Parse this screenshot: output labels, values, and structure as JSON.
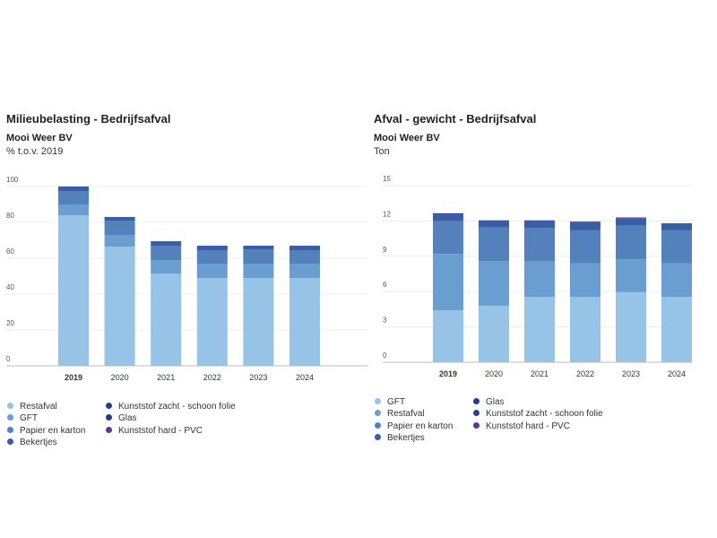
{
  "chart_data": [
    {
      "type": "bar",
      "stacked": true,
      "title": "Milieubelasting - Bedrijfsafval",
      "subtitle": "Mooi Weer BV",
      "unit": "% t.o.v. 2019",
      "xlabel": "",
      "ylabel": "",
      "categories": [
        "2019",
        "2020",
        "2021",
        "2022",
        "2023",
        "2024"
      ],
      "highlight_category": "2019",
      "ylim": [
        0,
        100
      ],
      "yticks": [
        0,
        20,
        40,
        60,
        80,
        100
      ],
      "grid": true,
      "legend_position": "bottom-left",
      "series": [
        {
          "name": "Restafval",
          "color": "#96c3e6",
          "values": [
            84,
            66.5,
            51.5,
            49,
            49,
            49
          ]
        },
        {
          "name": "GFT",
          "color": "#6b9ed0",
          "values": [
            6,
            6.5,
            7.5,
            8,
            8,
            8
          ]
        },
        {
          "name": "Papier en karton",
          "color": "#5480bb",
          "values": [
            7.5,
            8,
            8,
            7.5,
            8,
            7.5
          ]
        },
        {
          "name": "Bekertjes",
          "color": "#3a5ea6",
          "values": [
            2.5,
            2,
            2.5,
            2.5,
            2,
            2.5
          ]
        },
        {
          "name": "Kunststof zacht - schoon folie",
          "color": "#2c3f8c",
          "values": [
            0,
            0,
            0,
            0,
            0,
            0
          ]
        },
        {
          "name": "Glas",
          "color": "#2a3a86",
          "values": [
            0,
            0,
            0,
            0,
            0,
            0
          ]
        },
        {
          "name": "Kunststof hard - PVC",
          "color": "#5a3a8e",
          "values": [
            0,
            0,
            0,
            0,
            0,
            0
          ]
        }
      ],
      "legend_columns": [
        [
          "Restafval",
          "GFT",
          "Papier en karton",
          "Bekertjes"
        ],
        [
          "Kunststof zacht - schoon folie",
          "Glas",
          "Kunststof hard - PVC"
        ]
      ]
    },
    {
      "type": "bar",
      "stacked": true,
      "title": "Afval - gewicht - Bedrijfsafval",
      "subtitle": "Mooi Weer BV",
      "unit": "Ton",
      "xlabel": "",
      "ylabel": "",
      "categories": [
        "2019",
        "2020",
        "2021",
        "2022",
        "2023",
        "2024"
      ],
      "highlight_category": "2019",
      "ylim": [
        0,
        15
      ],
      "yticks": [
        0,
        3,
        6,
        9,
        12,
        15
      ],
      "grid": true,
      "legend_position": "bottom-left",
      "series": [
        {
          "name": "GFT",
          "color": "#96c3e6",
          "values": [
            4.4,
            4.8,
            5.55,
            5.55,
            5.95,
            5.55
          ]
        },
        {
          "name": "Restafval",
          "color": "#6b9ed0",
          "values": [
            4.8,
            3.8,
            3.0,
            2.85,
            2.8,
            2.85
          ]
        },
        {
          "name": "Papier en karton",
          "color": "#5480bb",
          "values": [
            2.8,
            2.85,
            2.85,
            2.8,
            2.85,
            2.8
          ]
        },
        {
          "name": "Bekertjes",
          "color": "#3a5ea6",
          "values": [
            0.55,
            0.55,
            0.6,
            0.65,
            0.6,
            0.55
          ]
        },
        {
          "name": "Glas",
          "color": "#2a3a86",
          "values": [
            0.1,
            0.05,
            0.05,
            0.05,
            0.05,
            0.05
          ]
        },
        {
          "name": "Kunststof zacht - schoon folie",
          "color": "#2c3f8c",
          "values": [
            0,
            0,
            0,
            0,
            0,
            0
          ]
        },
        {
          "name": "Kunststof hard - PVC",
          "color": "#5a3a8e",
          "values": [
            0,
            0,
            0,
            0.05,
            0.05,
            0
          ]
        }
      ],
      "legend_columns": [
        [
          "GFT",
          "Restafval",
          "Papier en karton",
          "Bekertjes"
        ],
        [
          "Glas",
          "Kunststof zacht - schoon folie",
          "Kunststof hard - PVC"
        ]
      ]
    }
  ]
}
